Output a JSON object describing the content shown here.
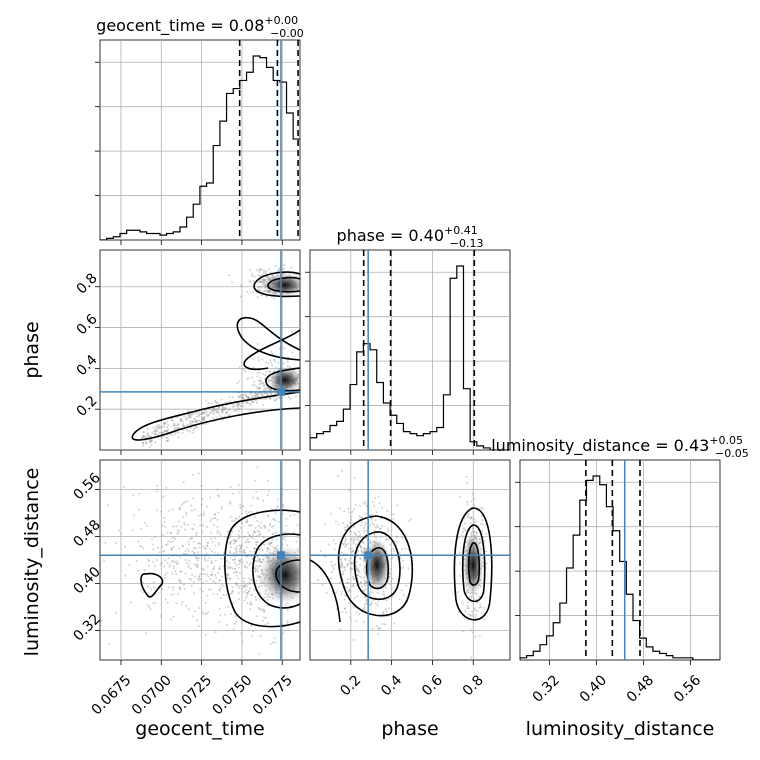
{
  "chart_data": {
    "type": "corner",
    "parameters": [
      {
        "name": "geocent_time",
        "xlabel": "geocent_time",
        "ylabel": "",
        "title_main": "geocent_time = 0.08",
        "title_upper": "+0.00",
        "title_lower": "−0.00",
        "range": [
          0.0662,
          0.0786
        ],
        "ticks": [
          0.0675,
          0.07,
          0.0725,
          0.075,
          0.0775
        ],
        "tick_labels": [
          "0.0675",
          "0.0700",
          "0.0725",
          "0.0750",
          "0.0775"
        ],
        "quantiles": [
          0.07486,
          0.0772,
          0.07848
        ],
        "truth": 0.07742,
        "hist_edges_start": 0.0662,
        "hist_bin_width": 0.000413,
        "hist_counts": [
          0,
          1,
          2,
          4,
          6,
          6,
          5,
          4,
          4,
          3,
          4,
          5,
          8,
          14,
          22,
          33,
          35,
          58,
          73,
          90,
          93,
          98,
          103,
          113,
          112,
          106,
          98,
          97,
          78,
          62
        ]
      },
      {
        "name": "phase",
        "xlabel": "phase",
        "ylabel": "phase",
        "title_main": "phase = 0.40",
        "title_upper": "+0.41",
        "title_lower": "−0.13",
        "range": [
          0.0,
          0.98
        ],
        "ticks": [
          0.2,
          0.4,
          0.6,
          0.8
        ],
        "tick_labels": [
          "0.2",
          "0.4",
          "0.6",
          "0.8"
        ],
        "quantiles": [
          0.263,
          0.395,
          0.805
        ],
        "truth": 0.285,
        "hist_edges_start": 0.0,
        "hist_bin_width": 0.0327,
        "hist_counts": [
          6,
          8,
          9,
          12,
          14,
          20,
          32,
          48,
          52,
          49,
          33,
          23,
          17,
          13,
          9,
          8,
          7,
          8,
          9,
          11,
          27,
          84,
          90,
          30,
          4,
          2,
          1,
          0,
          0,
          0
        ]
      },
      {
        "name": "luminosity_distance",
        "xlabel": "luminosity_distance",
        "ylabel": "luminosity_distance",
        "title_main": "luminosity_distance = 0.43",
        "title_upper": "+0.05",
        "title_lower": "−0.05",
        "range": [
          0.27,
          0.61
        ],
        "ticks": [
          0.32,
          0.4,
          0.48,
          0.56
        ],
        "tick_labels": [
          "0.32",
          "0.40",
          "0.48",
          "0.56"
        ],
        "quantiles": [
          0.382,
          0.427,
          0.474
        ],
        "truth": 0.448,
        "hist_edges_start": 0.27,
        "hist_bin_width": 0.0113,
        "hist_counts": [
          1,
          2,
          4,
          7,
          11,
          17,
          26,
          42,
          57,
          73,
          82,
          84,
          80,
          70,
          59,
          45,
          30,
          18,
          10,
          6,
          4,
          3,
          2,
          1,
          1,
          1,
          0,
          0,
          0,
          0
        ]
      }
    ],
    "grid": true,
    "truth_color": "#4682b4",
    "quantile_levels": [
      0.16,
      0.5,
      0.84
    ]
  }
}
